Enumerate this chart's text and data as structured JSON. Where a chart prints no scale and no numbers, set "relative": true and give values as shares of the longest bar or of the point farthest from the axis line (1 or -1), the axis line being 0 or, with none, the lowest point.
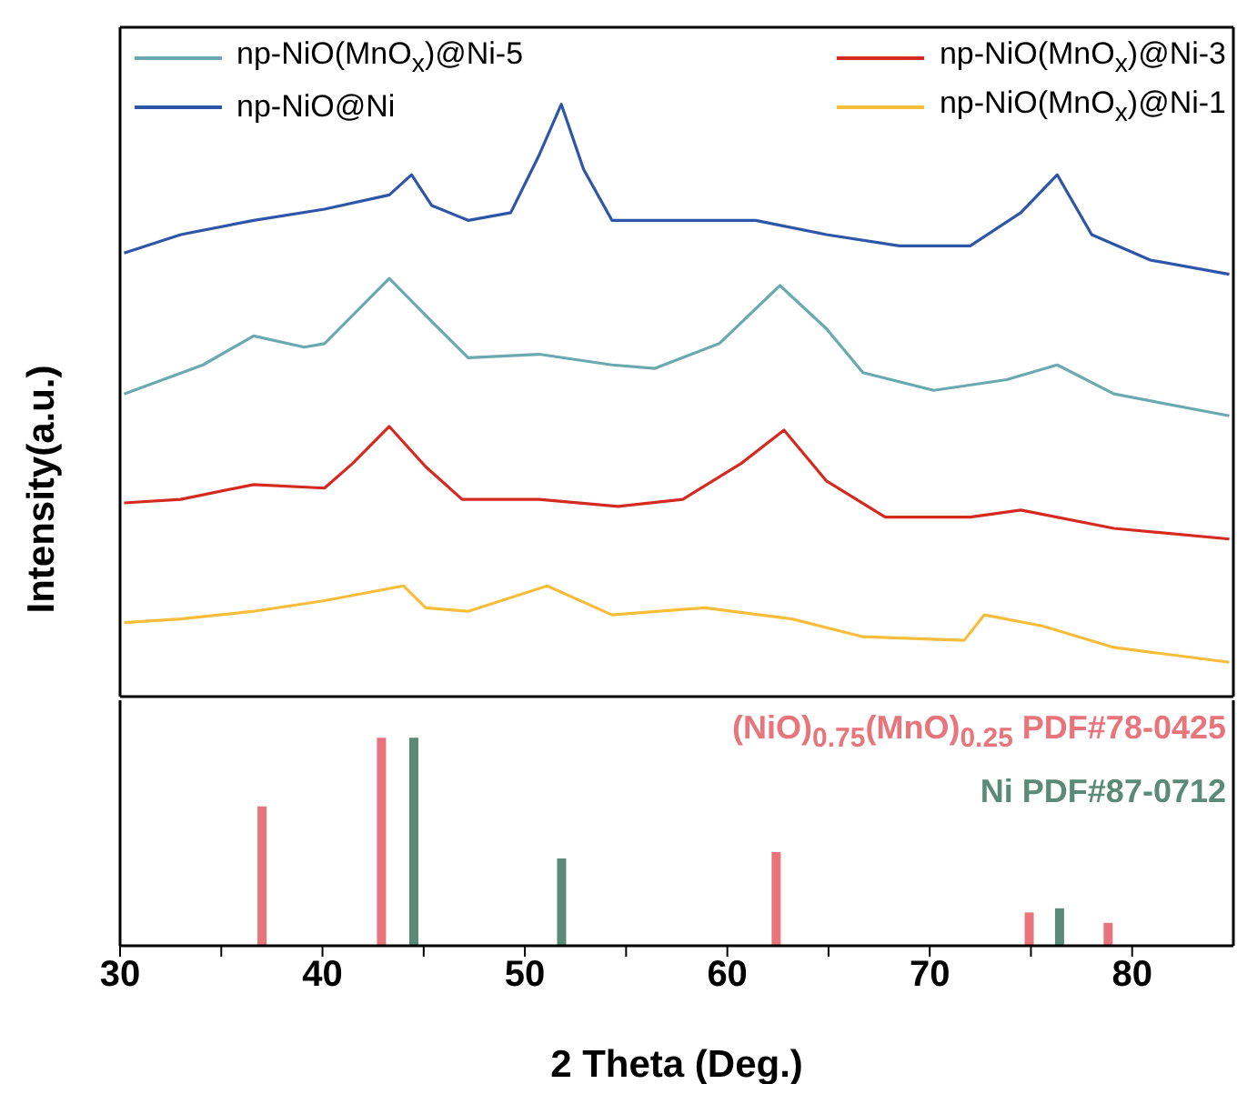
{
  "chart_data": [
    {
      "type": "line",
      "ylabel": "Intensity(a.u.)",
      "relative": true,
      "xlim": [
        30,
        85
      ],
      "xticks": [
        30,
        40,
        50,
        60,
        70,
        80
      ],
      "tick_labels": false,
      "legend": "top",
      "series": [
        {
          "name": "np-NiO(MnO$_{x}$)@Ni-5",
          "color": "#6aa9b0",
          "x": [
            30.2,
            34.1,
            36.6,
            39.1,
            40.1,
            43.3,
            45.4,
            47.2,
            50.7,
            54.3,
            56.4,
            59.6,
            62.6,
            64.9,
            66.7,
            70.2,
            73.8,
            76.3,
            79.1,
            84.8
          ],
          "values": [
            0.511,
            0.56,
            0.609,
            0.59,
            0.596,
            0.706,
            0.633,
            0.572,
            0.578,
            0.56,
            0.554,
            0.596,
            0.694,
            0.621,
            0.547,
            0.517,
            0.535,
            0.56,
            0.511,
            0.474
          ]
        },
        {
          "name": "np-NiO(MnO$_{x}$)@Ni-3",
          "color": "#d42a20",
          "x": [
            30.2,
            33.0,
            36.6,
            40.1,
            41.5,
            43.3,
            45.1,
            46.9,
            50.7,
            54.6,
            57.8,
            60.7,
            62.8,
            64.9,
            67.8,
            72.0,
            74.5,
            79.1,
            84.8
          ],
          "values": [
            0.327,
            0.333,
            0.358,
            0.352,
            0.394,
            0.456,
            0.388,
            0.333,
            0.333,
            0.321,
            0.333,
            0.394,
            0.45,
            0.364,
            0.303,
            0.303,
            0.315,
            0.284,
            0.266
          ]
        },
        {
          "name": "np-NiO@Ni",
          "color": "#2e56a8",
          "x": [
            30.2,
            33.0,
            36.6,
            40.1,
            43.3,
            44.4,
            45.4,
            47.2,
            49.3,
            50.7,
            51.8,
            52.9,
            54.3,
            57.8,
            61.4,
            64.9,
            68.5,
            72.0,
            74.5,
            76.3,
            78.0,
            80.9,
            84.8
          ],
          "values": [
            0.749,
            0.78,
            0.804,
            0.823,
            0.847,
            0.881,
            0.829,
            0.804,
            0.817,
            0.914,
            1.0,
            0.89,
            0.804,
            0.804,
            0.804,
            0.78,
            0.761,
            0.761,
            0.817,
            0.881,
            0.78,
            0.737,
            0.713
          ]
        },
        {
          "name": "np-NiO(MnO$_{x}$)@Ni-1",
          "color": "#f9bd3c",
          "x": [
            30.2,
            33.0,
            36.6,
            40.1,
            44.0,
            45.1,
            47.2,
            51.1,
            54.3,
            58.9,
            63.2,
            66.7,
            71.7,
            72.7,
            75.6,
            79.1,
            84.8
          ],
          "values": [
            0.125,
            0.131,
            0.144,
            0.162,
            0.187,
            0.15,
            0.144,
            0.187,
            0.138,
            0.15,
            0.131,
            0.101,
            0.095,
            0.138,
            0.119,
            0.083,
            0.058
          ]
        }
      ]
    },
    {
      "type": "bar",
      "xlabel": "2 Theta (Deg.)",
      "x": [
        37.0,
        42.9,
        44.5,
        51.8,
        62.4,
        74.9,
        76.4,
        78.8
      ],
      "relative": true,
      "xlim": [
        30,
        85
      ],
      "xticks": [
        30,
        {
          "value": 35,
          "label": null
        },
        40,
        {
          "value": 45,
          "label": null
        },
        50,
        {
          "value": 55,
          "label": null
        },
        60,
        {
          "value": 65,
          "label": null
        },
        70,
        {
          "value": 75,
          "label": null
        },
        80
      ],
      "tick_labels": "x",
      "series": [
        {
          "name": "(NiO)$_{0.75}$(MnO)$_{0.25}$ PDF#78-0425",
          "color": "#e8747c",
          "values": [
            0.67,
            1.0,
            null,
            null,
            0.45,
            0.16,
            null,
            0.11
          ]
        },
        {
          "name": "Ni PDF#87-0712",
          "color": "#5b8a78",
          "values": [
            null,
            null,
            1.0,
            0.42,
            null,
            null,
            0.18,
            null
          ]
        }
      ]
    }
  ]
}
